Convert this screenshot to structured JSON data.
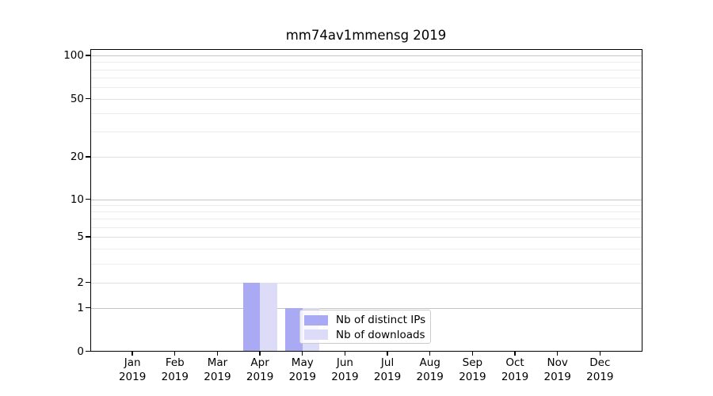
{
  "chart_data": {
    "type": "bar",
    "title": "mm74av1mmensg 2019",
    "categories": [
      {
        "month": "Jan",
        "year": "2019"
      },
      {
        "month": "Feb",
        "year": "2019"
      },
      {
        "month": "Mar",
        "year": "2019"
      },
      {
        "month": "Apr",
        "year": "2019"
      },
      {
        "month": "May",
        "year": "2019"
      },
      {
        "month": "Jun",
        "year": "2019"
      },
      {
        "month": "Jul",
        "year": "2019"
      },
      {
        "month": "Aug",
        "year": "2019"
      },
      {
        "month": "Sep",
        "year": "2019"
      },
      {
        "month": "Oct",
        "year": "2019"
      },
      {
        "month": "Nov",
        "year": "2019"
      },
      {
        "month": "Dec",
        "year": "2019"
      }
    ],
    "series": [
      {
        "name": "Nb of distinct IPs",
        "color": "#a9a9f4",
        "values": [
          0,
          0,
          0,
          2,
          1,
          0,
          0,
          0,
          0,
          0,
          0,
          0
        ]
      },
      {
        "name": "Nb of downloads",
        "color": "#dcdcf9",
        "values": [
          0,
          0,
          0,
          2,
          1,
          0,
          0,
          0,
          0,
          0,
          0,
          0
        ]
      }
    ],
    "xlabel": "",
    "ylabel": "",
    "yscale": "log1p",
    "ylim": [
      0,
      110
    ],
    "yticks": [
      0,
      1,
      2,
      5,
      10,
      20,
      50,
      100
    ],
    "minor_gridlines": [
      3,
      4,
      6,
      7,
      8,
      9,
      30,
      40,
      60,
      70,
      80,
      90
    ],
    "grid": "horizontal",
    "legend_position": "lower-center-inside"
  },
  "legend": {
    "items": [
      {
        "label": "Nb of distinct IPs"
      },
      {
        "label": "Nb of downloads"
      }
    ]
  },
  "colors": {
    "background": "#ffffff",
    "spine": "#000000",
    "major_grid": "#c4c4c4",
    "labeled_grid": "#e0e0e0",
    "minor_grid": "#ececec",
    "bar_distinct_ips": "#a9a9f4",
    "bar_downloads": "#dcdcf9",
    "legend_border": "#cccccc",
    "text": "#000000"
  }
}
